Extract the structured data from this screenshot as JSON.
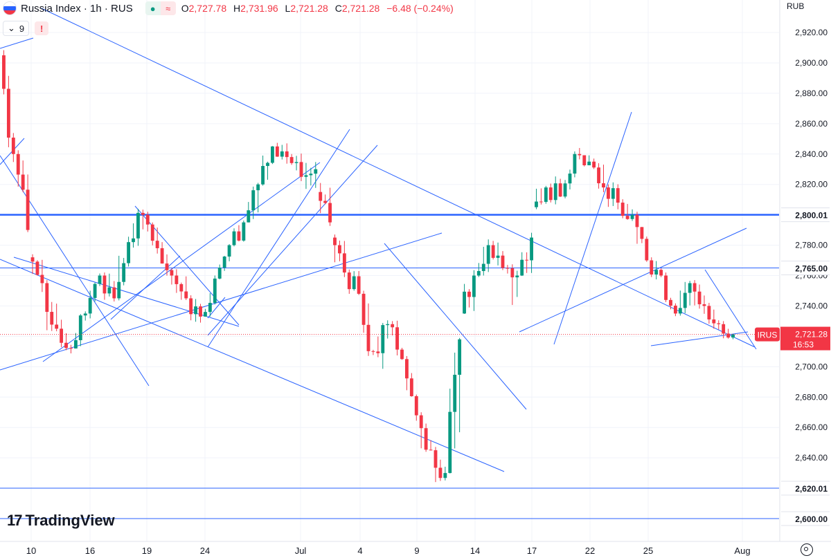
{
  "header": {
    "symbol": "Russia Index · 1h · RUS",
    "flag_colors": [
      "#ffffff",
      "#2962ff",
      "#f23645"
    ],
    "icons": [
      "market-open-dot-icon",
      "approx-icon"
    ],
    "ohlc": {
      "o_label": "O",
      "o": "2,727.78",
      "h_label": "H",
      "h": "2,731.96",
      "l_label": "L",
      "l": "2,721.28",
      "c_label": "C",
      "c": "2,721.28",
      "change": "−6.48 (−0.24%)"
    },
    "indicators_count": "9",
    "warning": "!"
  },
  "axis_unit": "RUB",
  "branding": {
    "logo_text": "TradingView"
  },
  "chart_data": {
    "type": "candlestick",
    "timeframe": "1h",
    "currency": "RUB",
    "ylim": [
      2595,
      2930
    ],
    "y_ticks": [
      2600,
      2620,
      2640,
      2660,
      2680,
      2700,
      2720,
      2740,
      2760,
      2780,
      2800,
      2820,
      2840,
      2860,
      2880,
      2900,
      2920
    ],
    "y_tick_labels": [
      "2,600.00",
      "2,620.00",
      "2,640.00",
      "2,660.00",
      "2,680.00",
      "2,700.00",
      "2,720.00",
      "2,740.00",
      "2,760.00",
      "2,780.00",
      "2,800.00",
      "2,820.00",
      "2,840.00",
      "2,860.00",
      "2,880.00",
      "2,900.00",
      "2,920.00"
    ],
    "x_ticks": [
      "10",
      "16",
      "19",
      "24",
      "Jul",
      "4",
      "9",
      "14",
      "17",
      "22",
      "25",
      "Aug"
    ],
    "colors": {
      "up": "#089981",
      "down": "#f23645",
      "trendline": "#2962ff",
      "thick_level": "#2962ff"
    },
    "price_levels": [
      {
        "value": 2800.01,
        "label": "2,800.01",
        "thick": true
      },
      {
        "value": 2765.0,
        "label": "2,765.00",
        "thick": false
      },
      {
        "value": 2620.01,
        "label": "2,620.01",
        "thick": false
      },
      {
        "value": 2600.0,
        "label": "2,600.00",
        "thick": false
      }
    ],
    "last_price": {
      "value": 2721.28,
      "symbol": "IRUS",
      "label": "2,721.28",
      "countdown": "16:53",
      "color": "#f23645"
    },
    "daily_ohlc": [
      {
        "o": 2905,
        "h": 2915,
        "l": 2830,
        "c": 2840
      },
      {
        "o": 2840,
        "h": 2850,
        "l": 2780,
        "c": 2790
      },
      {
        "o": 2772,
        "h": 2778,
        "l": 2745,
        "c": 2755
      },
      {
        "o": 2755,
        "h": 2762,
        "l": 2715,
        "c": 2725
      },
      {
        "o": 2725,
        "h": 2735,
        "l": 2705,
        "c": 2712
      },
      {
        "o": 2712,
        "h": 2740,
        "l": 2710,
        "c": 2735
      },
      {
        "o": 2735,
        "h": 2765,
        "l": 2728,
        "c": 2760
      },
      {
        "o": 2760,
        "h": 2768,
        "l": 2738,
        "c": 2745
      },
      {
        "o": 2745,
        "h": 2790,
        "l": 2740,
        "c": 2782
      },
      {
        "o": 2782,
        "h": 2806,
        "l": 2775,
        "c": 2800
      },
      {
        "o": 2800,
        "h": 2804,
        "l": 2770,
        "c": 2778
      },
      {
        "o": 2778,
        "h": 2785,
        "l": 2750,
        "c": 2760
      },
      {
        "o": 2760,
        "h": 2768,
        "l": 2738,
        "c": 2745
      },
      {
        "o": 2745,
        "h": 2752,
        "l": 2725,
        "c": 2733
      },
      {
        "o": 2733,
        "h": 2762,
        "l": 2730,
        "c": 2758
      },
      {
        "o": 2758,
        "h": 2785,
        "l": 2755,
        "c": 2780
      },
      {
        "o": 2780,
        "h": 2800,
        "l": 2772,
        "c": 2795
      },
      {
        "o": 2795,
        "h": 2825,
        "l": 2790,
        "c": 2820
      },
      {
        "o": 2820,
        "h": 2850,
        "l": 2815,
        "c": 2845
      },
      {
        "o": 2845,
        "h": 2858,
        "l": 2830,
        "c": 2838
      },
      {
        "o": 2838,
        "h": 2845,
        "l": 2818,
        "c": 2825
      },
      {
        "o": 2825,
        "h": 2840,
        "l": 2810,
        "c": 2830
      },
      {
        "o": 2815,
        "h": 2825,
        "l": 2788,
        "c": 2795
      },
      {
        "o": 2785,
        "h": 2790,
        "l": 2755,
        "c": 2762
      },
      {
        "o": 2762,
        "h": 2768,
        "l": 2740,
        "c": 2748
      },
      {
        "o": 2748,
        "h": 2752,
        "l": 2700,
        "c": 2710
      },
      {
        "o": 2710,
        "h": 2735,
        "l": 2690,
        "c": 2728
      },
      {
        "o": 2728,
        "h": 2734,
        "l": 2700,
        "c": 2705
      },
      {
        "o": 2705,
        "h": 2710,
        "l": 2660,
        "c": 2668
      },
      {
        "o": 2668,
        "h": 2672,
        "l": 2635,
        "c": 2645
      },
      {
        "o": 2645,
        "h": 2650,
        "l": 2615,
        "c": 2630
      },
      {
        "o": 2630,
        "h": 2722,
        "l": 2628,
        "c": 2718
      },
      {
        "o": 2735,
        "h": 2770,
        "l": 2730,
        "c": 2760
      },
      {
        "o": 2760,
        "h": 2788,
        "l": 2755,
        "c": 2780
      },
      {
        "o": 2780,
        "h": 2788,
        "l": 2758,
        "c": 2765
      },
      {
        "o": 2765,
        "h": 2770,
        "l": 2718,
        "c": 2760
      },
      {
        "o": 2760,
        "h": 2792,
        "l": 2755,
        "c": 2785
      },
      {
        "o": 2805,
        "h": 2825,
        "l": 2800,
        "c": 2818
      },
      {
        "o": 2818,
        "h": 2830,
        "l": 2802,
        "c": 2812
      },
      {
        "o": 2812,
        "h": 2845,
        "l": 2808,
        "c": 2840
      },
      {
        "o": 2840,
        "h": 2850,
        "l": 2830,
        "c": 2835
      },
      {
        "o": 2835,
        "h": 2842,
        "l": 2812,
        "c": 2818
      },
      {
        "o": 2818,
        "h": 2825,
        "l": 2800,
        "c": 2808
      },
      {
        "o": 2808,
        "h": 2820,
        "l": 2795,
        "c": 2800
      },
      {
        "o": 2800,
        "h": 2805,
        "l": 2765,
        "c": 2770
      },
      {
        "o": 2770,
        "h": 2782,
        "l": 2755,
        "c": 2760
      },
      {
        "o": 2760,
        "h": 2765,
        "l": 2728,
        "c": 2735
      },
      {
        "o": 2735,
        "h": 2762,
        "l": 2730,
        "c": 2755
      },
      {
        "o": 2755,
        "h": 2762,
        "l": 2730,
        "c": 2740
      },
      {
        "o": 2740,
        "h": 2745,
        "l": 2720,
        "c": 2728
      },
      {
        "o": 2728,
        "h": 2735,
        "l": 2715,
        "c": 2721.28
      }
    ]
  }
}
